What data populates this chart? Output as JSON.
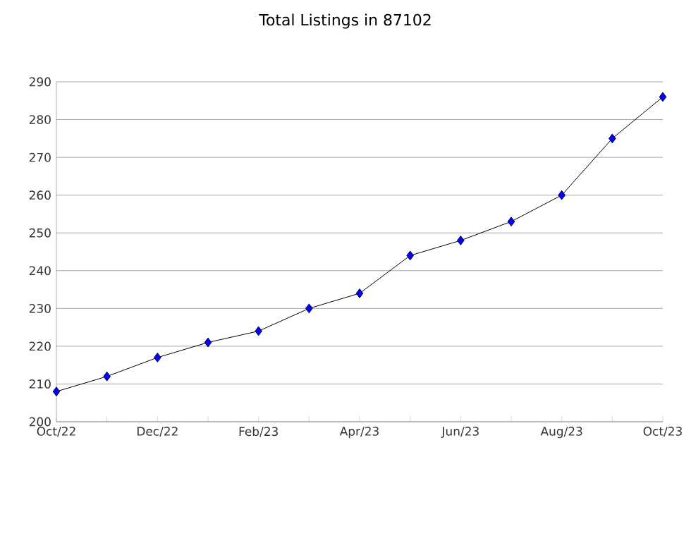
{
  "chart_data": {
    "type": "line",
    "title": "Total Listings in 87102",
    "categories": [
      "Oct/22",
      null,
      "Dec/22",
      null,
      "Feb/23",
      null,
      "Apr/23",
      null,
      "Jun/23",
      null,
      "Aug/23",
      null,
      "Oct/23"
    ],
    "series": [
      {
        "color": "#0000ff",
        "values": [
          208,
          212,
          217,
          221,
          224,
          230,
          234,
          244,
          248,
          253,
          260,
          275,
          286
        ]
      }
    ],
    "ylim": [
      200,
      290
    ],
    "yticks": [
      200,
      210,
      220,
      230,
      240,
      250,
      260,
      270,
      280,
      290
    ],
    "grid": "y",
    "marker": "diamond",
    "line_style": "solid"
  }
}
